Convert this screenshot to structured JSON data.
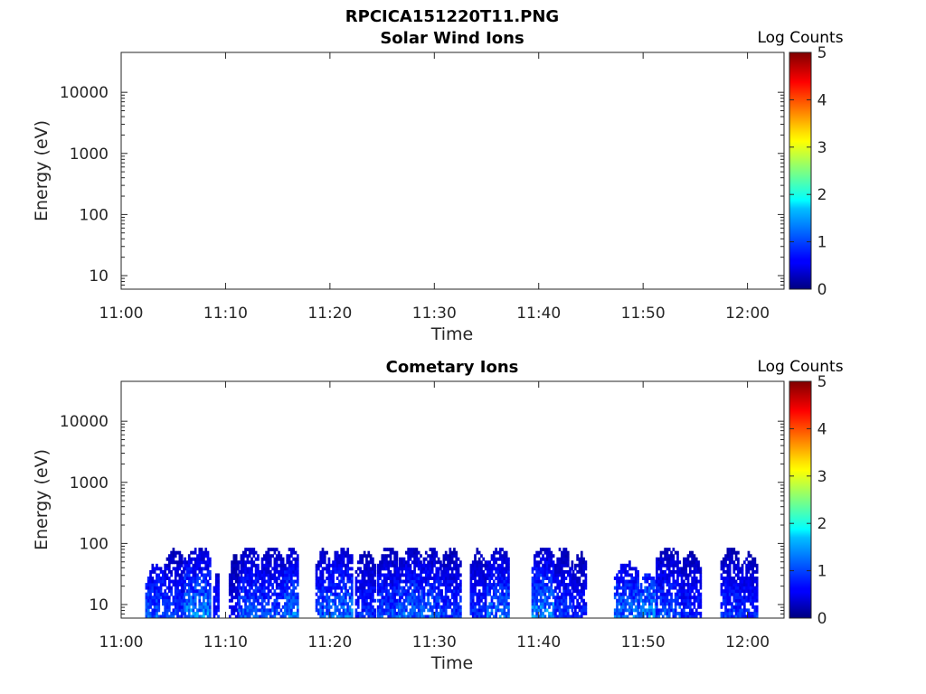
{
  "figure_title": "RPCICA151220T11.PNG",
  "chart_data": [
    {
      "type": "heatmap",
      "title": "Solar Wind Ions",
      "xlabel": "Time",
      "ylabel": "Energy (eV)",
      "x_ticks": [
        "11:00",
        "11:10",
        "11:20",
        "11:30",
        "11:40",
        "11:50",
        "12:00"
      ],
      "x_range_minutes": [
        0,
        63.5
      ],
      "y_scale": "log",
      "y_ticks": [
        10,
        100,
        1000,
        10000
      ],
      "y_tick_labels": [
        "10",
        "100",
        "1000",
        "10000"
      ],
      "ylim": [
        6,
        45000
      ],
      "colorbar": {
        "label": "Log Counts",
        "ticks": [
          0,
          1,
          2,
          3,
          4,
          5
        ],
        "range": [
          0,
          5
        ],
        "colormap": "jet"
      },
      "observations": []
    },
    {
      "type": "heatmap",
      "title": "Cometary Ions",
      "xlabel": "Time",
      "ylabel": "Energy (eV)",
      "x_ticks": [
        "11:00",
        "11:10",
        "11:20",
        "11:30",
        "11:40",
        "11:50",
        "12:00"
      ],
      "x_range_minutes": [
        0,
        63.5
      ],
      "y_scale": "log",
      "y_ticks": [
        10,
        100,
        1000,
        10000
      ],
      "y_tick_labels": [
        "10",
        "100",
        "1000",
        "10000"
      ],
      "ylim": [
        6,
        45000
      ],
      "colorbar": {
        "label": "Log Counts",
        "ticks": [
          0,
          1,
          2,
          3,
          4,
          5
        ],
        "range": [
          0,
          5
        ],
        "colormap": "jet"
      },
      "observations": [
        {
          "t_start": 2.3,
          "t_end": 4.1,
          "e_max": 40,
          "peak": 1.3
        },
        {
          "t_start": 4.1,
          "t_end": 6.0,
          "e_max": 70,
          "peak": 1.1
        },
        {
          "t_start": 6.0,
          "t_end": 8.6,
          "e_max": 80,
          "peak": 1.6
        },
        {
          "t_start": 8.8,
          "t_end": 9.4,
          "e_max": 30,
          "peak": 0.9
        },
        {
          "t_start": 10.3,
          "t_end": 11.2,
          "e_max": 60,
          "peak": 0.7
        },
        {
          "t_start": 11.2,
          "t_end": 13.2,
          "e_max": 80,
          "peak": 1.3
        },
        {
          "t_start": 13.2,
          "t_end": 15.6,
          "e_max": 80,
          "peak": 1.2
        },
        {
          "t_start": 15.6,
          "t_end": 17.0,
          "e_max": 75,
          "peak": 1.5
        },
        {
          "t_start": 18.6,
          "t_end": 20.0,
          "e_max": 70,
          "peak": 1.3
        },
        {
          "t_start": 20.0,
          "t_end": 22.2,
          "e_max": 80,
          "peak": 1.5
        },
        {
          "t_start": 22.4,
          "t_end": 24.3,
          "e_max": 70,
          "peak": 1.0
        },
        {
          "t_start": 24.5,
          "t_end": 26.6,
          "e_max": 80,
          "peak": 1.2
        },
        {
          "t_start": 26.6,
          "t_end": 28.7,
          "e_max": 80,
          "peak": 1.4
        },
        {
          "t_start": 28.7,
          "t_end": 30.6,
          "e_max": 75,
          "peak": 1.3
        },
        {
          "t_start": 30.6,
          "t_end": 32.5,
          "e_max": 75,
          "peak": 1.1
        },
        {
          "t_start": 33.4,
          "t_end": 35.0,
          "e_max": 70,
          "peak": 1.0
        },
        {
          "t_start": 35.0,
          "t_end": 37.2,
          "e_max": 80,
          "peak": 1.4
        },
        {
          "t_start": 39.3,
          "t_end": 41.5,
          "e_max": 80,
          "peak": 1.6
        },
        {
          "t_start": 41.5,
          "t_end": 43.2,
          "e_max": 80,
          "peak": 1.1
        },
        {
          "t_start": 43.2,
          "t_end": 44.6,
          "e_max": 60,
          "peak": 0.9
        },
        {
          "t_start": 47.2,
          "t_end": 49.5,
          "e_max": 45,
          "peak": 1.4
        },
        {
          "t_start": 49.5,
          "t_end": 51.2,
          "e_max": 30,
          "peak": 1.6
        },
        {
          "t_start": 51.2,
          "t_end": 53.6,
          "e_max": 80,
          "peak": 1.2
        },
        {
          "t_start": 53.6,
          "t_end": 55.5,
          "e_max": 65,
          "peak": 1.0
        },
        {
          "t_start": 57.4,
          "t_end": 59.2,
          "e_max": 80,
          "peak": 1.1
        },
        {
          "t_start": 59.2,
          "t_end": 61.0,
          "e_max": 60,
          "peak": 1.0
        }
      ]
    }
  ]
}
